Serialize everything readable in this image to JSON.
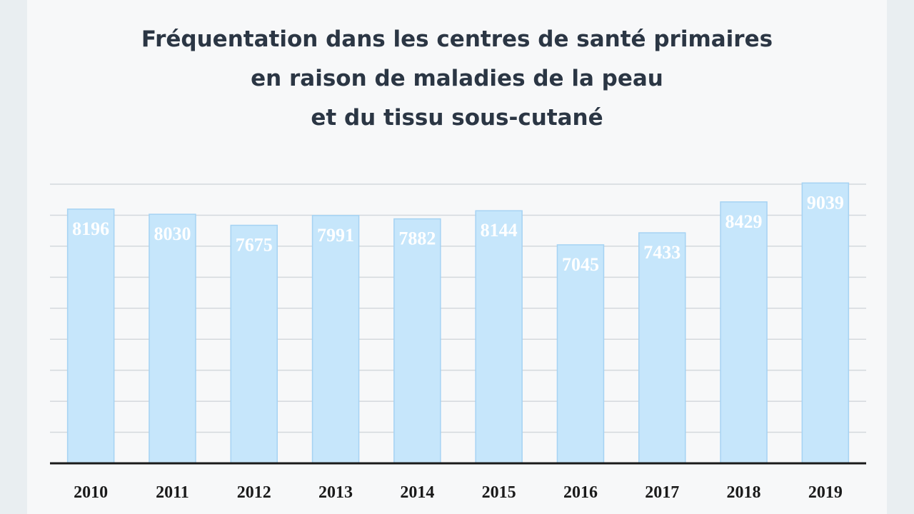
{
  "chart_data": {
    "type": "bar",
    "title": [
      "Fréquentation dans les centres de santé primaires",
      "en raison de maladies de la peau",
      "et du tissu sous-cutané"
    ],
    "categories": [
      "2010",
      "2011",
      "2012",
      "2013",
      "2014",
      "2015",
      "2016",
      "2017",
      "2018",
      "2019"
    ],
    "values": [
      8196,
      8030,
      7675,
      7991,
      7882,
      8144,
      7045,
      7433,
      8429,
      9039
    ],
    "xlabel": "",
    "ylabel": "",
    "ylim": [
      0,
      9000
    ],
    "grid": true,
    "colors": {
      "bar": "#c6e6fb",
      "bar_edge": "#a6d3f3",
      "label": "#ffffff",
      "axis": "#1a1a1a",
      "grid": "#d4d9dd"
    }
  }
}
